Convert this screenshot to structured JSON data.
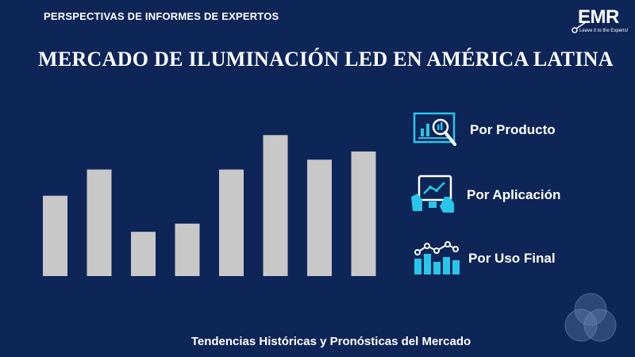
{
  "header": {
    "label": "PERSPECTIVAS DE INFORMES DE EXPERTOS"
  },
  "logo": {
    "text": "EMR",
    "tagline": "Leave it to the Experts!"
  },
  "title": "MERCADO DE ILUMINACIÓN LED EN AMÉRICA LATINA",
  "legend": [
    {
      "label": "Por Producto",
      "icon": "magnifier-chart-icon"
    },
    {
      "label": "Por Aplicación",
      "icon": "touch-tablet-icon"
    },
    {
      "label": "Por Uso Final",
      "icon": "bar-line-chart-icon"
    }
  ],
  "footer": {
    "text": "Tendencias Históricas y Pronósticas del Mercado"
  },
  "colors": {
    "background": "#0d2557",
    "bars": "#c8c8c8",
    "accent": "#29c5ea"
  },
  "chart_data": {
    "type": "bar",
    "categories": [
      "",
      "",
      "",
      "",
      "",
      "",
      "",
      ""
    ],
    "values": [
      49,
      65,
      27,
      32,
      65,
      86,
      71,
      76
    ],
    "title": "",
    "xlabel": "",
    "ylabel": "",
    "ylim": [
      0,
      90
    ],
    "grid": false
  }
}
